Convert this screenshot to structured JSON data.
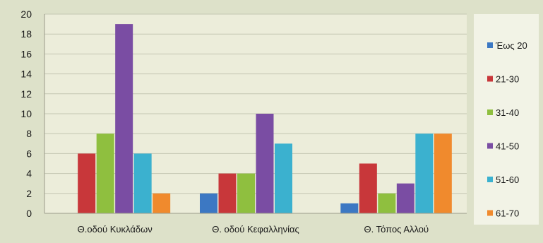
{
  "chart_data": {
    "type": "bar",
    "categories": [
      "Θ.οδού Κυκλάδων",
      "Θ. οδού Κεφαλληνίας",
      "Θ. Τόπος Αλλού"
    ],
    "series": [
      {
        "name": "Έως 20",
        "color": "#3c78c3",
        "values": [
          0,
          2,
          1
        ]
      },
      {
        "name": "21-30",
        "color": "#c8373a",
        "values": [
          6,
          4,
          5
        ]
      },
      {
        "name": "31-40",
        "color": "#8fbf3f",
        "values": [
          8,
          4,
          2
        ]
      },
      {
        "name": "41-50",
        "color": "#7a4da3",
        "values": [
          19,
          10,
          3
        ]
      },
      {
        "name": "51-60",
        "color": "#3bb1cf",
        "values": [
          6,
          7,
          8
        ]
      },
      {
        "name": "61-70",
        "color": "#f08a2d",
        "values": [
          2,
          0,
          8
        ]
      }
    ],
    "ylim": [
      0,
      20
    ],
    "yticks": [
      0,
      2,
      4,
      6,
      8,
      10,
      12,
      14,
      16,
      18,
      20
    ],
    "grid": true,
    "legend_position": "right",
    "title": "",
    "xlabel": "",
    "ylabel": ""
  },
  "colors": {
    "frame_background": "#dde1c9",
    "plot_background": "#ecedda",
    "gridline": "#c4c6b2",
    "legend_background": "#f2f3e6"
  }
}
